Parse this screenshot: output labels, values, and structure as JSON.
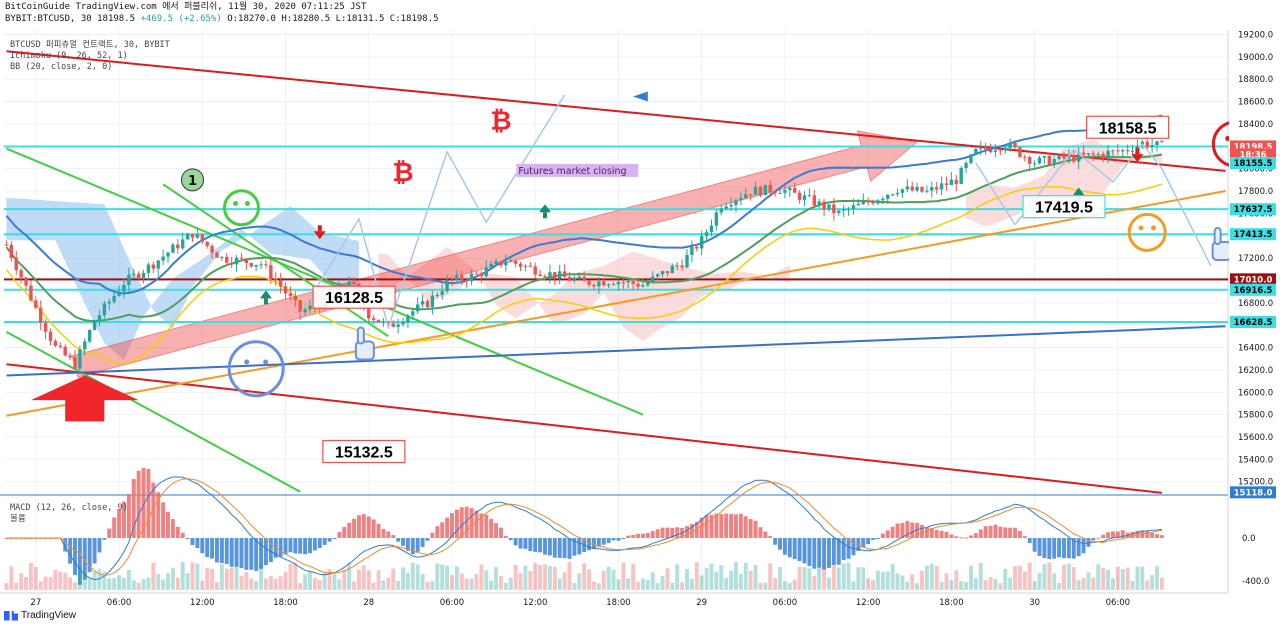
{
  "header": {
    "line1": "BitCoinGuide TradingView.com 에서 퍼블리쉬, 11월 30, 2020 07:11:25 JST",
    "symbol": "BYBIT:BTCUSD, 30",
    "change": "+469.5 (+2.65%)",
    "open": "O:18270.0",
    "high": "H:18280.5",
    "low": "L:18131.5",
    "close": "C:18198.5"
  },
  "legend": {
    "main": "BTCUSD 퍼피츄얼 컨트랙트, 30, BYBIT",
    "ichimoku": "Ichimoku (9, 26, 52, 1)",
    "bb": "BB (20, close, 2, 0)",
    "macd": "MACD (12, 26, close, 9)",
    "macd_sub": "볼륨"
  },
  "branding": "TradingView",
  "colors": {
    "up": "#26a69a",
    "down": "#ef5350",
    "trend_red": "#e0191a",
    "trend_green": "#3ed13e",
    "trend_blue": "#3a6fd0",
    "trend_orange": "#f59b22",
    "hline_cyan": "#38e0e6",
    "hline_red": "#a01010",
    "bb_basis": "#3a7bd5",
    "bb_band": "#f5d000",
    "ichimoku_cloud": "#9ec7ef",
    "ichimoku_red": "#f4a9a9",
    "macd_line": "#2f7bd6",
    "signal_line": "#f28a2c"
  },
  "chart_data": {
    "type": "candlestick",
    "y_ticks": [
      "19200.0",
      "19000.0",
      "18800.0",
      "18600.0",
      "18400.0",
      "18200.0",
      "18000.0",
      "17800.0",
      "17600.0",
      "17400.0",
      "17200.0",
      "17000.0",
      "16800.0",
      "16600.0",
      "16400.0",
      "16200.0",
      "16000.0",
      "15800.0",
      "15600.0",
      "15400.0",
      "15200.0"
    ],
    "ylim": [
      15090,
      19240
    ],
    "x_ticks": [
      {
        "label": "27",
        "i": 6
      },
      {
        "label": "06:00",
        "i": 23
      },
      {
        "label": "12:00",
        "i": 40
      },
      {
        "label": "18:00",
        "i": 57
      },
      {
        "label": "28",
        "i": 74
      },
      {
        "label": "06:00",
        "i": 91
      },
      {
        "label": "12:00",
        "i": 108
      },
      {
        "label": "18:00",
        "i": 125
      },
      {
        "label": "29",
        "i": 142
      },
      {
        "label": "06:00",
        "i": 159
      },
      {
        "label": "12:00",
        "i": 176
      },
      {
        "label": "18:00",
        "i": 193
      },
      {
        "label": "30",
        "i": 210
      },
      {
        "label": "06:00",
        "i": 227
      }
    ],
    "price_labels": [
      {
        "text": "18198.5",
        "price": 18198.5,
        "color": "#ef5350"
      },
      {
        "text": "18:36",
        "price": 18128,
        "color": "#ef5350"
      },
      {
        "text": "18155.5",
        "price": 18050,
        "color": "#38e0e6"
      },
      {
        "text": "17637.5",
        "price": 17637.5,
        "color": "#38e0e6"
      },
      {
        "text": "17413.5",
        "price": 17413.5,
        "color": "#38e0e6"
      },
      {
        "text": "17010.0",
        "price": 17010,
        "color": "#a01010"
      },
      {
        "text": "16916.5",
        "price": 16916.5,
        "color": "#38e0e6"
      },
      {
        "text": "16628.5",
        "price": 16628.5,
        "color": "#38e0e6"
      },
      {
        "text": "15118.0",
        "price": 15105,
        "color": "#2f7bd6"
      }
    ],
    "hlines": [
      {
        "price": 18198.5,
        "color": "#38e0e6"
      },
      {
        "price": 17637.5,
        "color": "#38e0e6"
      },
      {
        "price": 17413.5,
        "color": "#38e0e6"
      },
      {
        "price": 17010.0,
        "color": "#a01010"
      },
      {
        "price": 16916.5,
        "color": "#38e0e6"
      },
      {
        "price": 16628.5,
        "color": "#38e0e6"
      }
    ],
    "trendlines": [
      {
        "color": "#e0191a",
        "x1": 0,
        "p1": 19050,
        "x2": 249,
        "p2": 17980
      },
      {
        "color": "#e0191a",
        "x1": 0,
        "p1": 16250,
        "x2": 236,
        "p2": 15100
      },
      {
        "color": "#3ed13e",
        "x1": 0,
        "p1": 18180,
        "x2": 130,
        "p2": 15800
      },
      {
        "color": "#3ed13e",
        "x1": 0,
        "p1": 16540,
        "x2": 60,
        "p2": 15110
      },
      {
        "color": "#3ed13e",
        "x1": 32,
        "p1": 17860,
        "x2": 78,
        "p2": 16500
      },
      {
        "color": "#f59b22",
        "x1": 0,
        "p1": 15790,
        "x2": 249,
        "p2": 17800
      },
      {
        "color": "#3a6fd0",
        "x1": 0,
        "p1": 16150,
        "x2": 249,
        "p2": 16590
      }
    ],
    "annotations": [
      {
        "text": "16128.5",
        "i": 71,
        "price": 16850
      },
      {
        "text": "15132.5",
        "i": 73,
        "price": 15470
      },
      {
        "text": "17419.5",
        "i": 216,
        "price": 17660
      },
      {
        "text": "18158.5",
        "i": 229,
        "price": 18370
      },
      {
        "text": "1",
        "i": 38,
        "price": 17900
      },
      {
        "text": "Futures market closing",
        "i": 107,
        "price": 17980
      }
    ],
    "candles": [],
    "macd": {
      "ticks": [
        "0.0",
        "-400.0"
      ],
      "ylim": [
        -500,
        380
      ]
    }
  }
}
